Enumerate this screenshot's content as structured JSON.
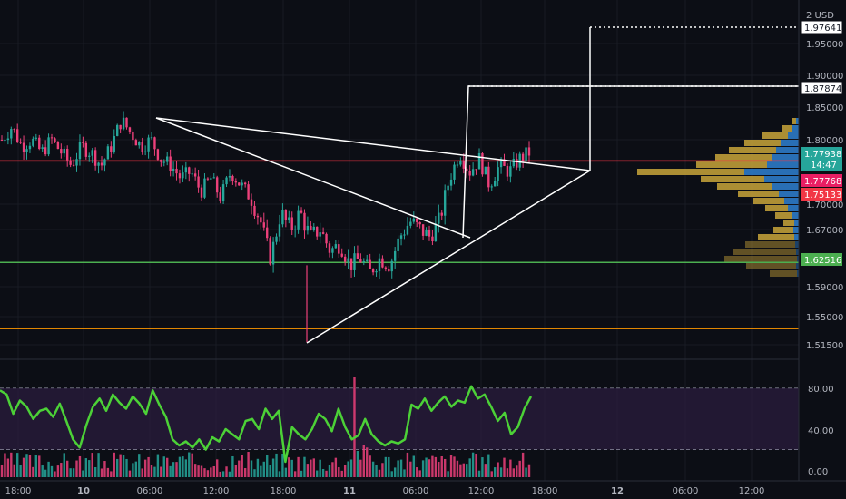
{
  "chart_data": {
    "type": "candlestick",
    "currency_label": "2 USD",
    "price_axis": {
      "ylim": [
        1.5,
        2.0
      ],
      "ticks": [
        "1.95000",
        "1.90000",
        "1.85000",
        "1.80000",
        "1.70000",
        "1.67000",
        "1.59000",
        "1.55000",
        "1.51500"
      ]
    },
    "price_tags": [
      {
        "name": "target-high",
        "label": "1.97641",
        "style": "outline"
      },
      {
        "name": "target-mid",
        "label": "1.87874",
        "style": "outline"
      },
      {
        "name": "last-price",
        "label": "1.77938",
        "sub": "14:47",
        "color": "#26a69a"
      },
      {
        "name": "poc",
        "label": "1.77768",
        "color": "#e91e63"
      },
      {
        "name": "red-level",
        "label": "1.75133",
        "color": "#f23645"
      },
      {
        "name": "green-level",
        "label": "1.62516",
        "color": "#4caf50"
      }
    ],
    "x_ticks": [
      "18:00",
      "10",
      "06:00",
      "12:00",
      "18:00",
      "11",
      "06:00",
      "12:00",
      "18:00",
      "12",
      "06:00",
      "12:00"
    ],
    "close_path": [
      1.8,
      1.82,
      1.79,
      1.8,
      1.78,
      1.8,
      1.78,
      1.76,
      1.79,
      1.78,
      1.76,
      1.79,
      1.83,
      1.81,
      1.79,
      1.8,
      1.77,
      1.76,
      1.74,
      1.75,
      1.72,
      1.74,
      1.71,
      1.75,
      1.73,
      1.71,
      1.68,
      1.63,
      1.69,
      1.67,
      1.69,
      1.66,
      1.67,
      1.64,
      1.65,
      1.62,
      1.63,
      1.61,
      1.63,
      1.62,
      1.66,
      1.68,
      1.67,
      1.66,
      1.68,
      1.74,
      1.78,
      1.75,
      1.77,
      1.73,
      1.76,
      1.75,
      1.77,
      1.78
    ],
    "horizontal_levels": [
      {
        "name": "red-line",
        "value": 1.767,
        "color": "#f23645"
      },
      {
        "name": "green-line",
        "value": 1.624,
        "color": "#4caf50"
      },
      {
        "name": "orange-line",
        "value": 1.535,
        "color": "#ff9800"
      }
    ],
    "rsi": {
      "ylim": [
        0,
        100
      ],
      "ticks": [
        "80.00",
        "40.00",
        "0.00"
      ],
      "upper_band": 80,
      "lower_band": 20,
      "values": [
        78,
        74,
        55,
        68,
        62,
        50,
        58,
        60,
        52,
        65,
        48,
        30,
        22,
        44,
        62,
        70,
        58,
        74,
        66,
        60,
        72,
        65,
        55,
        78,
        64,
        52,
        30,
        24,
        28,
        22,
        30,
        20,
        32,
        28,
        40,
        35,
        30,
        48,
        50,
        40,
        60,
        50,
        58,
        8,
        42,
        35,
        30,
        40,
        55,
        50,
        38,
        60,
        42,
        30,
        34,
        50,
        35,
        28,
        24,
        28,
        26,
        30,
        64,
        60,
        70,
        58,
        66,
        72,
        62,
        68,
        66,
        82,
        70,
        74,
        62,
        48,
        56,
        35,
        42,
        60,
        72
      ]
    },
    "colors": {
      "up": "#26a69a",
      "down": "#ec407a",
      "rsi_line": "#4cd137",
      "rsi_band": "#2a1c3d",
      "profile_gold": "#c9a43a",
      "profile_blue": "#2f80d1"
    }
  }
}
